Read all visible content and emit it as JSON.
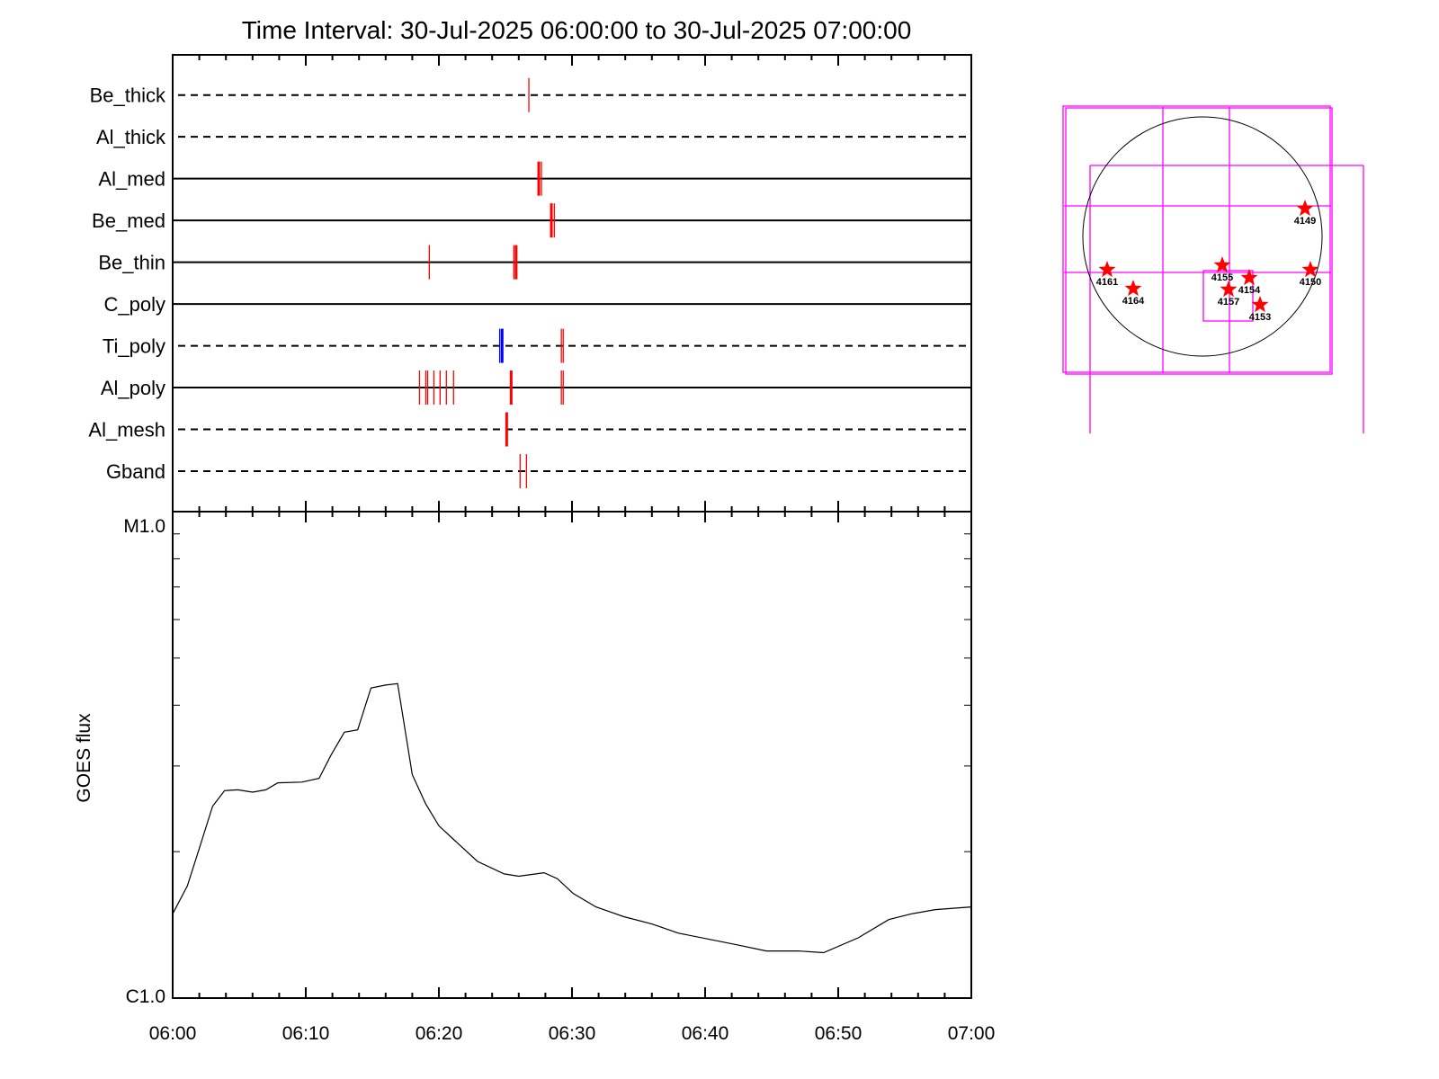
{
  "chart_data": [
    {
      "type": "event-timeline",
      "title": "Time Interval: 30-Jul-2025 06:00:00 to 30-Jul-2025 07:00:00",
      "xlim_minutes": [
        0,
        60
      ],
      "rows": [
        {
          "name": "Be_thick",
          "style": "dashed",
          "events": [
            {
              "t": 26.76,
              "color": "#ff0000"
            }
          ]
        },
        {
          "name": "Al_thick",
          "style": "dashed",
          "events": []
        },
        {
          "name": "Al_med",
          "style": "solid",
          "events": [
            {
              "t": 27.5,
              "color": "#ff0000",
              "bold": true
            },
            {
              "t": 27.7,
              "color": "#ff0000"
            }
          ]
        },
        {
          "name": "Be_med",
          "style": "solid",
          "events": [
            {
              "t": 28.45,
              "color": "#ff0000",
              "bold": true
            },
            {
              "t": 28.67,
              "color": "#ff0000"
            }
          ]
        },
        {
          "name": "Be_thin",
          "style": "solid",
          "events": [
            {
              "t": 19.28,
              "color": "#ff0000"
            },
            {
              "t": 25.63,
              "color": "#ff0000"
            },
            {
              "t": 25.8,
              "color": "#ff0000",
              "bold": true
            }
          ]
        },
        {
          "name": "C_poly",
          "style": "solid",
          "events": []
        },
        {
          "name": "Ti_poly",
          "style": "dashed",
          "events": [
            {
              "t": 24.57,
              "color": "#0000ff"
            },
            {
              "t": 24.75,
              "color": "#0000ff",
              "bold": true
            },
            {
              "t": 29.2,
              "color": "#ff0000"
            },
            {
              "t": 29.34,
              "color": "#ff0000"
            }
          ]
        },
        {
          "name": "Al_poly",
          "style": "solid",
          "events": [
            {
              "t": 18.54,
              "color": "#ff0000"
            },
            {
              "t": 19.02,
              "color": "#ff0000"
            },
            {
              "t": 19.16,
              "color": "#ff0000"
            },
            {
              "t": 19.62,
              "color": "#ff0000"
            },
            {
              "t": 20.09,
              "color": "#ff0000"
            },
            {
              "t": 20.56,
              "color": "#ff0000"
            },
            {
              "t": 21.1,
              "color": "#ff0000"
            },
            {
              "t": 25.43,
              "color": "#ff0000",
              "bold": true
            },
            {
              "t": 29.2,
              "color": "#ff0000"
            },
            {
              "t": 29.34,
              "color": "#ff0000"
            }
          ]
        },
        {
          "name": "Al_mesh",
          "style": "dashed",
          "events": [
            {
              "t": 25.09,
              "color": "#ff0000",
              "bold": true
            }
          ]
        },
        {
          "name": "Gband",
          "style": "dashed",
          "events": [
            {
              "t": 26.1,
              "color": "#ff0000"
            },
            {
              "t": 26.58,
              "color": "#ff0000"
            }
          ]
        }
      ]
    },
    {
      "type": "line",
      "ylabel": "GOES flux",
      "yscale": "log",
      "ylim": [
        1e-06,
        1e-05
      ],
      "ytick_labels": [
        "C1.0",
        "M1.0"
      ],
      "xtick_labels": [
        "06:00",
        "06:10",
        "06:20",
        "06:30",
        "06:40",
        "06:50",
        "07:00"
      ],
      "xlim_minutes": [
        0,
        60
      ],
      "series": [
        {
          "name": "GOES flux",
          "color": "#000000",
          "t": [
            0,
            1.1,
            2.0,
            3.0,
            3.9,
            4.9,
            6.0,
            7.0,
            7.9,
            9.7,
            11.0,
            11.9,
            12.9,
            13.9,
            14.9,
            16.0,
            16.9,
            18.0,
            19.0,
            20.0,
            21.1,
            22.9,
            24.9,
            26.0,
            27.9,
            28.9,
            30.1,
            31.8,
            33.9,
            36.0,
            38.0,
            42.2,
            44.6,
            47.0,
            48.9,
            51.5,
            53.8,
            55.5,
            57.3,
            60
          ],
          "flux": [
            1.49e-06,
            1.7e-06,
            2.03e-06,
            2.48e-06,
            2.67e-06,
            2.68e-06,
            2.65e-06,
            2.68e-06,
            2.77e-06,
            2.78e-06,
            2.83e-06,
            3.16e-06,
            3.52e-06,
            3.56e-06,
            4.34e-06,
            4.4e-06,
            4.43e-06,
            2.88e-06,
            2.51e-06,
            2.26e-06,
            2.12e-06,
            1.91e-06,
            1.8e-06,
            1.78e-06,
            1.81e-06,
            1.76e-06,
            1.64e-06,
            1.54e-06,
            1.47e-06,
            1.42e-06,
            1.36e-06,
            1.29e-06,
            1.25e-06,
            1.25e-06,
            1.24e-06,
            1.33e-06,
            1.45e-06,
            1.49e-06,
            1.52e-06,
            1.54e-06
          ]
        }
      ]
    },
    {
      "type": "scatter",
      "active_regions": [
        "4149",
        "4161",
        "4164",
        "4155",
        "4154",
        "4157",
        "4153",
        "4150"
      ],
      "colors": {
        "marker": "#ff0000",
        "fov": "#ff00ff",
        "limb": "#000000"
      }
    }
  ]
}
